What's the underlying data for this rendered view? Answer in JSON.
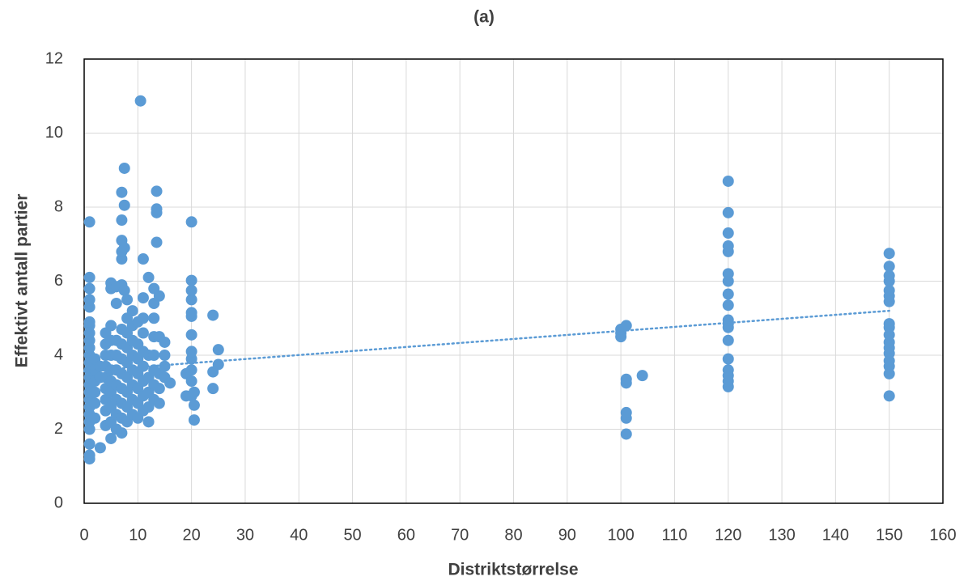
{
  "chart_data": {
    "type": "scatter",
    "title": "(a)",
    "x_label": "Distriktstørrelse",
    "y_label": "Effektivt antall partier",
    "xlim": [
      0,
      160
    ],
    "xticks": [
      0,
      10,
      20,
      30,
      40,
      50,
      60,
      70,
      80,
      90,
      100,
      110,
      120,
      130,
      140,
      150,
      160
    ],
    "ylim": [
      0,
      12
    ],
    "yticks": [
      0,
      2,
      4,
      6,
      8,
      10,
      12
    ],
    "grid": true,
    "series": [
      {
        "color": "#5b9bd5",
        "x": [
          1,
          1,
          1,
          1,
          1,
          1,
          1,
          1,
          1,
          1,
          1,
          1,
          1,
          1,
          1,
          1,
          1,
          1,
          1,
          1,
          1,
          1,
          1,
          1,
          2,
          2,
          2,
          2,
          2,
          2,
          3,
          3,
          3,
          4,
          4,
          4,
          4,
          4,
          4,
          4,
          4,
          4,
          5,
          5,
          5,
          5,
          5,
          5,
          5,
          5,
          5,
          5,
          5,
          6,
          6,
          6,
          6,
          6,
          6,
          6,
          6,
          6,
          7,
          7,
          7,
          7,
          7,
          7,
          7,
          7,
          7,
          7,
          7,
          7,
          7,
          7,
          7.5,
          7.5,
          7.5,
          7.5,
          8,
          8,
          8,
          8,
          8,
          8,
          8,
          8,
          8,
          9,
          9,
          9,
          9,
          9,
          9,
          9,
          9,
          10,
          10,
          10,
          10,
          10,
          10,
          10,
          10.5,
          11,
          11,
          11,
          11,
          11,
          11,
          11,
          11,
          11,
          12,
          12,
          12,
          12,
          12,
          12,
          13,
          13,
          13,
          13,
          13,
          13,
          13,
          13,
          13.5,
          13.5,
          13.5,
          13.5,
          14,
          14,
          14,
          14,
          14,
          15,
          15,
          15,
          15,
          16,
          19,
          19,
          20,
          20,
          20,
          20,
          20,
          20,
          20,
          20,
          20,
          20,
          20,
          20,
          20.5,
          20.5,
          20.5,
          24,
          24,
          24,
          25,
          25,
          100,
          100,
          100,
          101,
          101,
          101,
          101,
          101,
          101,
          104,
          120,
          120,
          120,
          120,
          120,
          120,
          120,
          120,
          120,
          120,
          120,
          120,
          120,
          120,
          120,
          120,
          120,
          120,
          150,
          150,
          150,
          150,
          150,
          150,
          150,
          150,
          150,
          150,
          150,
          150,
          150,
          150,
          150,
          150,
          150
        ],
        "values": [
          1.2,
          1.3,
          1.6,
          2.0,
          2.2,
          2.4,
          2.6,
          2.8,
          3.0,
          3.2,
          3.4,
          3.6,
          3.8,
          4.0,
          4.2,
          4.4,
          4.6,
          4.8,
          4.9,
          5.3,
          5.5,
          5.8,
          6.1,
          7.6,
          2.3,
          2.7,
          3.0,
          3.3,
          3.6,
          3.9,
          1.5,
          3.4,
          3.7,
          2.1,
          2.5,
          2.8,
          3.1,
          3.4,
          3.7,
          4.0,
          4.3,
          4.6,
          1.75,
          2.2,
          2.6,
          3.0,
          3.3,
          3.6,
          4.0,
          4.4,
          4.8,
          5.8,
          5.95,
          2.0,
          2.4,
          2.8,
          3.2,
          3.6,
          4.0,
          4.4,
          5.4,
          5.85,
          1.9,
          2.3,
          2.7,
          3.1,
          3.5,
          3.9,
          4.3,
          4.7,
          5.9,
          6.6,
          6.8,
          7.1,
          7.65,
          8.4,
          9.05,
          8.05,
          6.9,
          5.75,
          2.2,
          2.6,
          3.0,
          3.4,
          3.8,
          4.2,
          4.6,
          5.0,
          5.5,
          2.4,
          2.8,
          3.2,
          3.6,
          4.0,
          4.4,
          4.8,
          5.2,
          2.3,
          2.7,
          3.1,
          3.5,
          3.9,
          4.3,
          4.9,
          10.87,
          2.5,
          2.9,
          3.3,
          3.7,
          4.1,
          4.6,
          5.0,
          5.55,
          6.6,
          2.2,
          2.6,
          3.0,
          3.4,
          4.0,
          6.1,
          2.8,
          3.2,
          3.6,
          4.0,
          4.5,
          5.0,
          5.4,
          5.8,
          7.05,
          7.85,
          7.95,
          8.43,
          2.7,
          3.1,
          3.5,
          4.5,
          5.6,
          3.4,
          3.7,
          4.0,
          4.35,
          3.25,
          2.9,
          3.5,
          2.9,
          3.3,
          3.6,
          3.9,
          4.1,
          4.55,
          5.05,
          5.15,
          5.5,
          5.75,
          6.02,
          7.6,
          2.25,
          2.65,
          3.0,
          3.1,
          3.55,
          5.08,
          3.75,
          4.15,
          4.5,
          4.6,
          4.7,
          1.87,
          2.3,
          2.45,
          3.25,
          3.35,
          4.8,
          3.45,
          3.15,
          3.3,
          3.45,
          3.6,
          3.9,
          4.4,
          4.75,
          4.85,
          4.95,
          5.35,
          5.65,
          6.0,
          6.2,
          6.8,
          6.95,
          7.3,
          7.85,
          8.7,
          2.9,
          3.5,
          3.7,
          3.85,
          4.05,
          4.2,
          4.35,
          4.55,
          4.75,
          4.85,
          5.45,
          5.6,
          5.75,
          6.0,
          6.15,
          6.4,
          6.75
        ]
      }
    ],
    "trendline": {
      "x": [
        0,
        150
      ],
      "values": [
        3.57,
        5.2
      ],
      "color": "#5b9bd5"
    }
  }
}
